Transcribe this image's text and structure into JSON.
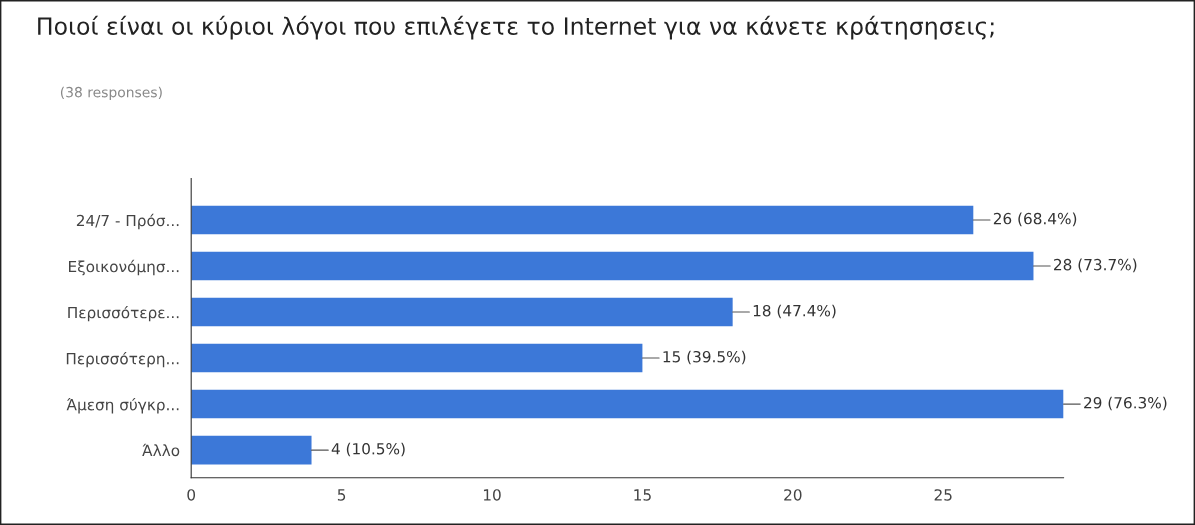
{
  "chart_data": {
    "type": "bar",
    "orientation": "horizontal",
    "title": "Ποιοί είναι οι κύριοι λόγοι που επιλέγετε το Internet για να κάνετε κράτησησεις;",
    "subtitle": "(38 responses)",
    "categories": [
      "24/7 - Πρόσ...",
      "Εξοικονόμησ...",
      "Περισσότερε...",
      "Περισσότερη...",
      "Άμεση σύγκρ...",
      "Άλλο"
    ],
    "values": [
      26,
      28,
      18,
      15,
      29,
      4
    ],
    "value_labels": [
      "26 (68.4%)",
      "28 (73.7%)",
      "18 (47.4%)",
      "15 (39.5%)",
      "29 (76.3%)",
      "4 (10.5%)"
    ],
    "color": "#3c78d8",
    "xlim": [
      0,
      29
    ],
    "xticks": [
      0,
      5,
      10,
      15,
      20,
      25
    ],
    "grid": false,
    "legend": false
  }
}
